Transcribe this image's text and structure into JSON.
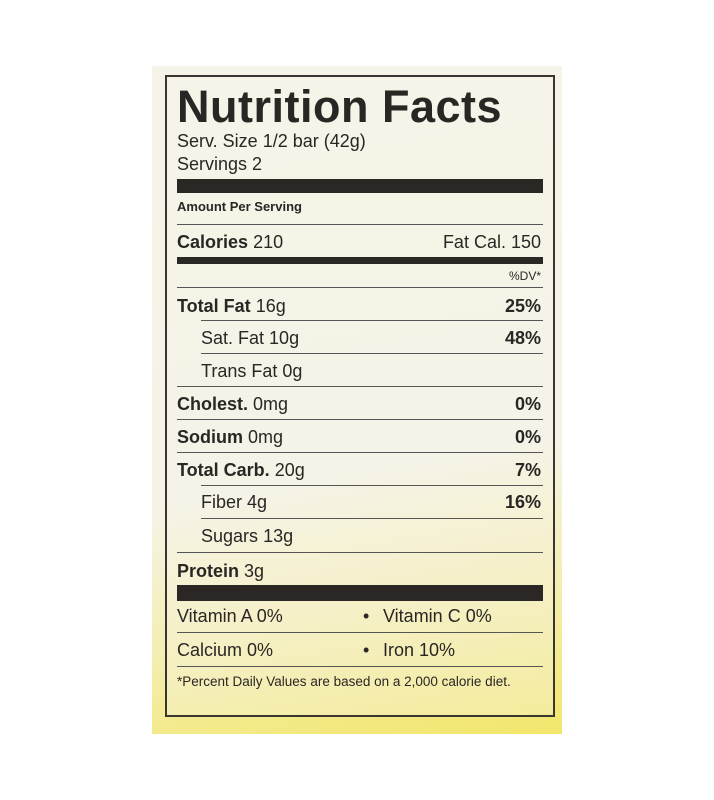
{
  "title": "Nutrition Facts",
  "serving_size": "Serv. Size 1/2 bar (42g)",
  "servings": "Servings 2",
  "amount_per_serving": "Amount Per Serving",
  "calories": {
    "label": "Calories",
    "value": "210",
    "fat_cal": "Fat Cal. 150"
  },
  "dv_header": "%DV*",
  "nutrients": [
    {
      "label": "Total Fat",
      "value": "16g",
      "dv": "25%"
    },
    {
      "label": "Sat. Fat",
      "value": "10g",
      "dv": "48%"
    },
    {
      "label": "Trans Fat",
      "value": "0g",
      "dv": ""
    },
    {
      "label": "Cholest.",
      "value": "0mg",
      "dv": "0%"
    },
    {
      "label": "Sodium",
      "value": "0mg",
      "dv": "0%"
    },
    {
      "label": "Total Carb.",
      "value": "20g",
      "dv": "7%"
    },
    {
      "label": "Fiber",
      "value": "4g",
      "dv": "16%"
    },
    {
      "label": "Sugars",
      "value": "13g",
      "dv": ""
    },
    {
      "label": "Protein",
      "value": "3g",
      "dv": ""
    }
  ],
  "vitamins": [
    {
      "left": "Vitamin A 0%",
      "right": "Vitamin C 0%"
    },
    {
      "left": "Calcium 0%",
      "right": "Iron 10%"
    }
  ],
  "bullet": "•",
  "footnote": "*Percent Daily Values are based on a 2,000 calorie diet."
}
